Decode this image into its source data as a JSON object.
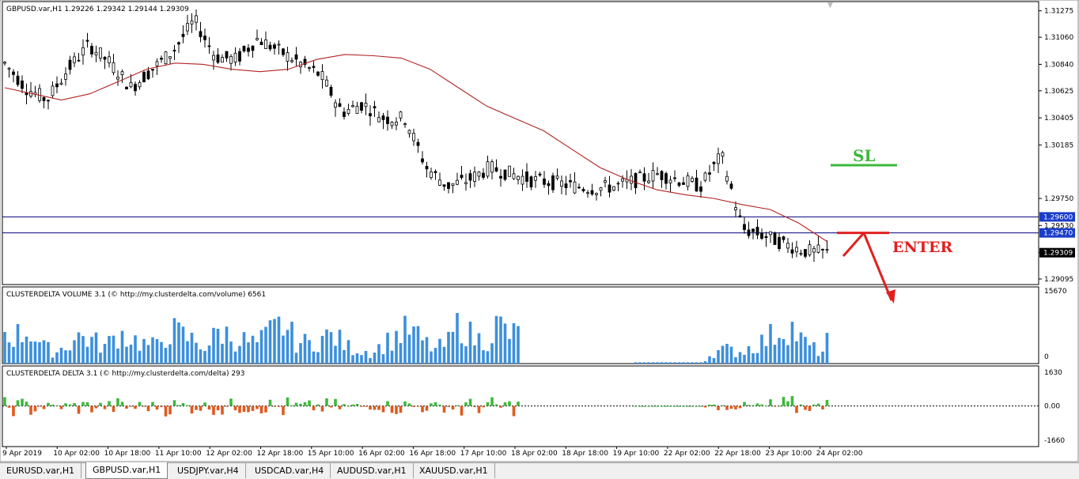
{
  "chart_data": [
    {
      "type": "candlestick",
      "title": "GBPUSD.var,H1  1.29226 1.29342 1.29144 1.29309",
      "ylim": [
        1.2905,
        1.3135
      ],
      "yticks": [
        "1.31275",
        "1.31060",
        "1.30840",
        "1.30625",
        "1.30405",
        "1.30185",
        "1.29750",
        "1.29530",
        "1.29309",
        "1.29095"
      ],
      "ytick_values": [
        1.31275,
        1.3106,
        1.3084,
        1.30625,
        1.30405,
        1.30185,
        1.2975,
        1.2953,
        1.29309,
        1.29095
      ],
      "hlines": [
        {
          "value": 1.296,
          "label": "1.29600",
          "color": "#000080"
        },
        {
          "value": 1.2947,
          "label": "1.29470",
          "color": "#000080"
        }
      ],
      "current_price": {
        "value": 1.29309,
        "label": "1.29309"
      },
      "ma_color": "#b22222",
      "ma": [
        1.3065,
        1.306,
        1.3055,
        1.306,
        1.307,
        1.308,
        1.3085,
        1.3084,
        1.308,
        1.3078,
        1.308,
        1.3088,
        1.3092,
        1.3091,
        1.3089,
        1.308,
        1.3065,
        1.305,
        1.304,
        1.303,
        1.3015,
        1.3,
        1.299,
        1.2982,
        1.2978,
        1.2975,
        1.297,
        1.2966,
        1.2955,
        1.294
      ],
      "series_anchors": [
        1.3085,
        1.3065,
        1.3055,
        1.308,
        1.31,
        1.3085,
        1.3065,
        1.308,
        1.3095,
        1.312,
        1.309,
        1.3088,
        1.3105,
        1.3095,
        1.3085,
        1.3075,
        1.3045,
        1.3052,
        1.304,
        1.304,
        1.3,
        1.2985,
        1.299,
        1.3,
        1.2995,
        1.299,
        1.2988,
        1.2985,
        1.2983,
        1.2985,
        1.299,
        1.2995,
        1.299,
        1.2985,
        1.301,
        1.295,
        1.2945,
        1.2938,
        1.2932,
        1.2931
      ],
      "annotations": [
        {
          "text": "SL",
          "color": "#3cb83c"
        },
        {
          "text": "ENTER",
          "color": "#e02020"
        }
      ]
    },
    {
      "type": "bar",
      "title": "CLUSTERDELTA VOLUME 3.1 (© http://my.clusterdelta.com/volume) 6561",
      "yticks": [
        "15670",
        "0"
      ],
      "ylim": [
        0,
        15670
      ],
      "color": "#3c8fdc",
      "bar_count": 238,
      "profile": [
        55,
        50,
        60,
        30,
        20,
        35,
        50,
        40,
        30,
        55,
        45,
        35,
        30,
        60,
        50,
        40,
        30,
        60,
        45,
        40,
        35,
        55,
        70,
        40,
        35,
        45,
        50,
        30,
        25,
        20,
        35,
        50,
        60,
        40,
        25,
        35,
        75,
        45,
        40,
        70,
        50,
        55,
        50,
        40,
        30,
        25,
        10,
        5,
        0,
        0,
        0,
        0,
        0,
        0,
        0,
        0,
        20,
        25,
        20,
        30,
        40,
        55,
        70,
        40,
        25,
        20
      ],
      "last_value": 6561
    },
    {
      "type": "bar",
      "title": "CLUSTERDELTA DELTA 3.1 (© http://my.clusterdelta.com/delta) 293",
      "yticks": [
        "1630",
        "0.00",
        "-1660"
      ],
      "ylim": [
        -1660,
        1630
      ],
      "pos_color": "#3cb83c",
      "neg_color": "#e05a1e",
      "last_value": 293
    }
  ],
  "xticks": [
    "9 Apr 2019",
    "10 Apr 02:00",
    "10 Apr 18:00",
    "11 Apr 10:00",
    "12 Apr 02:00",
    "12 Apr 18:00",
    "15 Apr 10:00",
    "16 Apr 02:00",
    "16 Apr 18:00",
    "17 Apr 10:00",
    "18 Apr 02:00",
    "18 Apr 18:00",
    "19 Apr 10:00",
    "22 Apr 02:00",
    "22 Apr 18:00",
    "23 Apr 10:00",
    "24 Apr 02:00"
  ],
  "tabs": [
    {
      "label": "EURUSD.var,H1",
      "active": false
    },
    {
      "label": "GBPUSD.var,H1",
      "active": true
    },
    {
      "label": "USDJPY.var,H4",
      "active": false
    },
    {
      "label": "USDCAD.var,H4",
      "active": false
    },
    {
      "label": "AUDUSD.var,H1",
      "active": false
    },
    {
      "label": "XAUUSD.var,H1",
      "active": false
    }
  ]
}
